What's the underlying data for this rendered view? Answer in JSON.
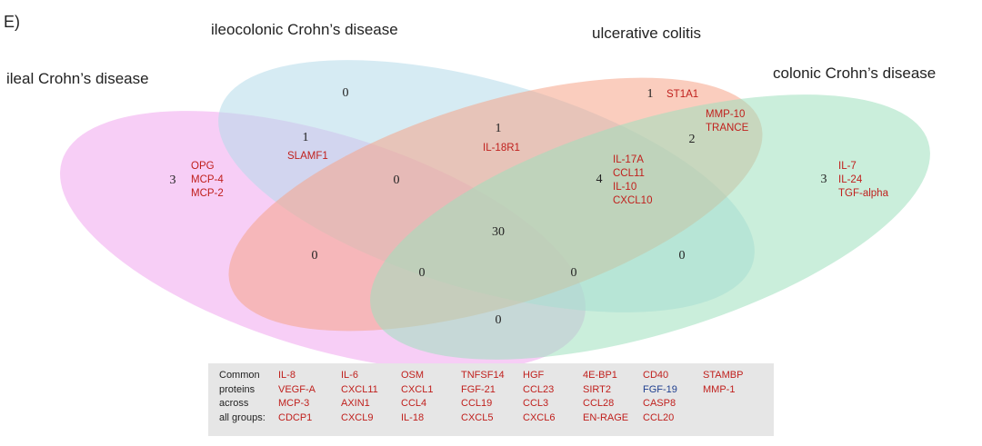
{
  "panel_label": "E)",
  "group_labels": {
    "ileal": "ileal Crohn’s disease",
    "ileocolonic": "ileocolonic Crohn’s disease",
    "ulcerative": "ulcerative colitis",
    "colonic": "colonic Crohn’s disease"
  },
  "colors": {
    "ileal": "#f0a6ee",
    "ileocolonic": "#b5dbe9",
    "ulcerative": "#f6a488",
    "colonic": "#9fe0bd",
    "protein_text": "#c0201d",
    "protein_text_alt": "#1f3f8f",
    "common_box": "#e6e6e6"
  },
  "regions": [
    {
      "id": "ileocolonic_only",
      "count": "0",
      "proteins": []
    },
    {
      "id": "ulcerative_only",
      "count": "1",
      "proteins": [
        "ST1A1"
      ]
    },
    {
      "id": "ileal_ileocolonic",
      "count": "1",
      "proteins": [
        "SLAMF1"
      ]
    },
    {
      "id": "ileocolonic_ulcerative",
      "count": "1",
      "proteins": [
        "IL-18R1"
      ]
    },
    {
      "id": "ulcerative_colonic",
      "count": "2",
      "proteins": [
        "MMP-10",
        "TRANCE"
      ]
    },
    {
      "id": "ileal_only",
      "count": "3",
      "proteins": [
        "OPG",
        "MCP-4",
        "MCP-2"
      ]
    },
    {
      "id": "ileal_ileocolonic_ulcerative",
      "count": "0",
      "proteins": []
    },
    {
      "id": "ileocolonic_ulcerative_colonic",
      "count": "4",
      "proteins": [
        "IL-17A",
        "CCL11",
        "IL-10",
        "CXCL10"
      ]
    },
    {
      "id": "colonic_only",
      "count": "3",
      "proteins": [
        "IL-7",
        "IL-24",
        "TGF-alpha"
      ]
    },
    {
      "id": "all_four",
      "count": "30",
      "proteins": []
    },
    {
      "id": "ileal_ulcerative",
      "count": "0",
      "proteins": []
    },
    {
      "id": "ileocolonic_colonic",
      "count": "0",
      "proteins": []
    },
    {
      "id": "ileal_ulcerative_colonic",
      "count": "0",
      "proteins": []
    },
    {
      "id": "ileal_ileocolonic_colonic",
      "count": "0",
      "proteins": []
    },
    {
      "id": "ileal_colonic",
      "count": "0",
      "proteins": []
    }
  ],
  "common": {
    "heading": [
      "Common",
      "proteins",
      "across",
      "all groups:"
    ],
    "columns": [
      [
        "IL-8",
        "VEGF-A",
        "MCP-3",
        "CDCP1"
      ],
      [
        "IL-6",
        "CXCL11",
        "AXIN1",
        "CXCL9"
      ],
      [
        "OSM",
        "CXCL1",
        "CCL4",
        "IL-18"
      ],
      [
        "TNFSF14",
        "FGF-21",
        "CCL19",
        "CXCL5"
      ],
      [
        "HGF",
        "CCL23",
        "CCL3",
        "CXCL6"
      ],
      [
        "4E-BP1",
        "SIRT2",
        "CCL28",
        "EN-RAGE"
      ],
      [
        "CD40",
        "FGF-19",
        "CASP8",
        "CCL20"
      ],
      [
        "STAMBP",
        "MMP-1"
      ]
    ],
    "highlight_blue": [
      "FGF-19"
    ]
  }
}
